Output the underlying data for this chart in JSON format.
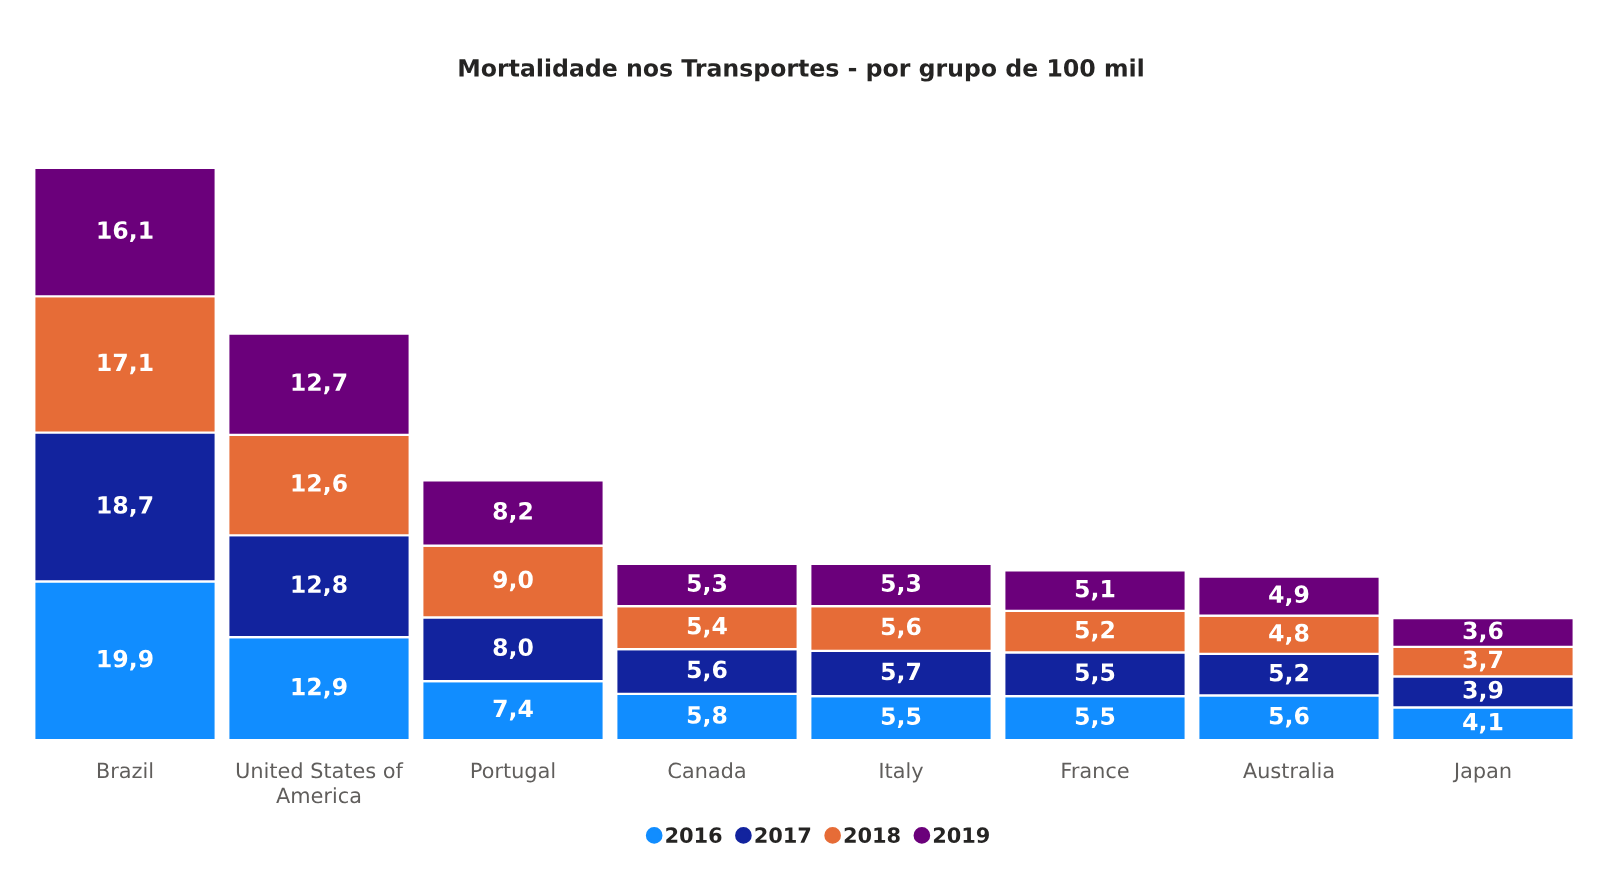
{
  "chart_data": {
    "type": "bar",
    "title": "Mortalidade nos Transportes - por grupo de 100 mil",
    "categories": [
      "Brazil",
      "United States of America",
      "Portugal",
      "Canada",
      "Italy",
      "France",
      "Australia",
      "Japan"
    ],
    "stacked": true,
    "legend": "bottom",
    "tick_labels": "x",
    "series": [
      {
        "name": "2016",
        "color": "#118dff",
        "values": [
          19.9,
          12.9,
          7.4,
          5.8,
          5.5,
          5.5,
          5.6,
          4.1
        ],
        "value_labels": [
          "19,9",
          "12,9",
          "7,4",
          "5,8",
          "5,5",
          "5,5",
          "5,6",
          "4,1"
        ]
      },
      {
        "name": "2017",
        "color": "#12239e",
        "values": [
          18.7,
          12.8,
          8.0,
          5.6,
          5.7,
          5.5,
          5.2,
          3.9
        ],
        "value_labels": [
          "18,7",
          "12,8",
          "8,0",
          "5,6",
          "5,7",
          "5,5",
          "5,2",
          "3,9"
        ]
      },
      {
        "name": "2018",
        "color": "#e66c37",
        "values": [
          17.1,
          12.6,
          9.0,
          5.4,
          5.6,
          5.2,
          4.8,
          3.7
        ],
        "value_labels": [
          "17,1",
          "12,6",
          "9,0",
          "5,4",
          "5,6",
          "5,2",
          "4,8",
          "3,7"
        ]
      },
      {
        "name": "2019",
        "color": "#6b007b",
        "values": [
          16.1,
          12.7,
          8.2,
          5.3,
          5.3,
          5.1,
          4.9,
          3.6
        ],
        "value_labels": [
          "16,1",
          "12,7",
          "8,2",
          "5,3",
          "5,3",
          "5,1",
          "4,9",
          "3,6"
        ]
      }
    ]
  }
}
